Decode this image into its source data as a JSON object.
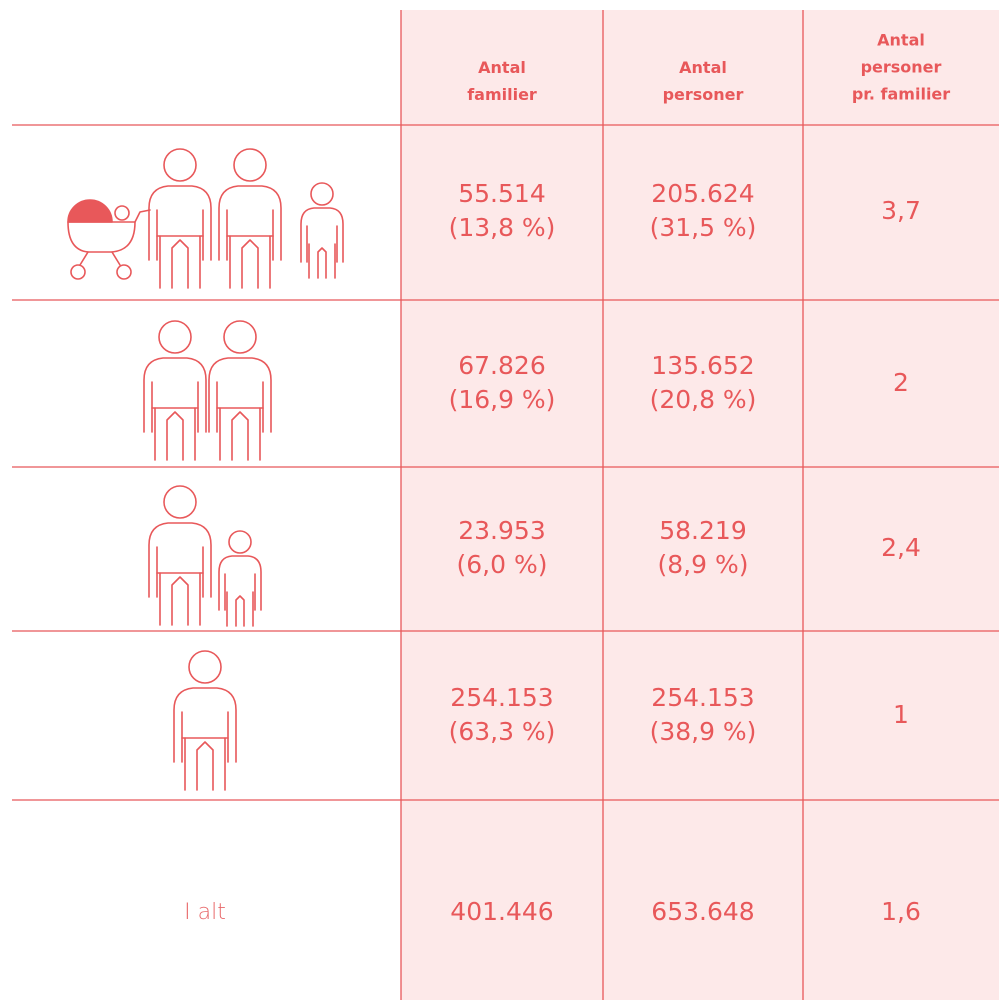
{
  "header": {
    "columns": [
      [
        "Antal",
        "familier"
      ],
      [
        "Antal",
        "personer"
      ],
      [
        "Antal",
        "personer",
        "pr. familier"
      ]
    ]
  },
  "rows": [
    {
      "families": [
        "55.514",
        "(13,8 %)"
      ],
      "persons": [
        "205.624",
        "(31,5 %)"
      ],
      "per_family": "3,7"
    },
    {
      "families": [
        "67.826",
        "(16,9 %)"
      ],
      "persons": [
        "135.652",
        "(20,8 %)"
      ],
      "per_family": "2"
    },
    {
      "families": [
        "23.953",
        "(6,0 %)"
      ],
      "persons": [
        "58.219",
        "(8,9 %)"
      ],
      "per_family": "2,4"
    },
    {
      "families": [
        "254.153",
        "(63,3 %)"
      ],
      "persons": [
        "254.153",
        "(38,9 %)"
      ],
      "per_family": "1"
    }
  ],
  "total": {
    "label": "I alt",
    "families": "401.446",
    "persons": "653.648",
    "per_family": "1,6"
  }
}
